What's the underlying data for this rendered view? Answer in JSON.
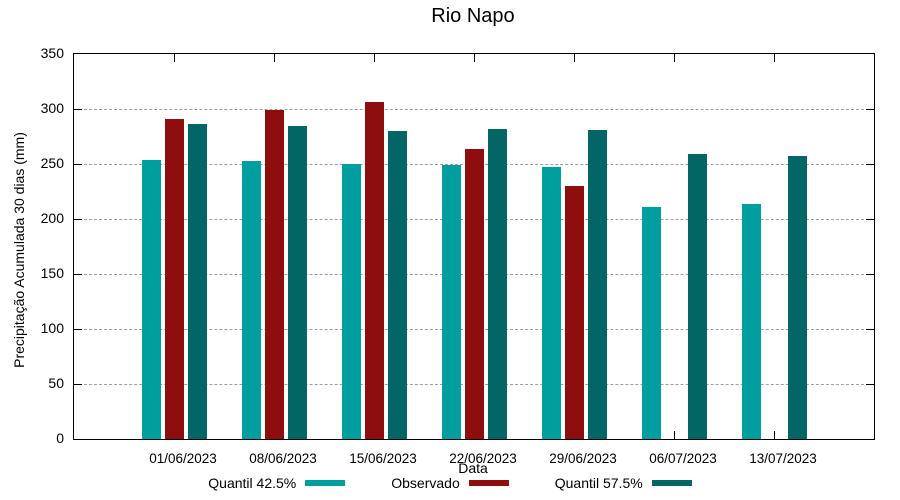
{
  "chart_data": {
    "type": "bar",
    "title": "Rio Napo",
    "xlabel": "Data",
    "ylabel": "Precipitação Acumulada 30 dias (mm)",
    "categories": [
      "01/06/2023",
      "08/06/2023",
      "15/06/2023",
      "22/06/2023",
      "29/06/2023",
      "06/07/2023",
      "13/07/2023"
    ],
    "series": [
      {
        "name": "Quantil 42.5%",
        "color": "#009E9E",
        "values": [
          254,
          253,
          250,
          249,
          247,
          211,
          214
        ]
      },
      {
        "name": "Observado",
        "color": "#8E0D0D",
        "values": [
          291,
          299,
          306,
          264,
          230,
          null,
          null
        ]
      },
      {
        "name": "Quantil 57.5%",
        "color": "#026666",
        "values": [
          286,
          285,
          280,
          282,
          281,
          259,
          257
        ]
      }
    ],
    "ylim": [
      0,
      350
    ],
    "ytick_step": 50,
    "yticks": [
      0,
      50,
      100,
      150,
      200,
      250,
      300,
      350
    ],
    "grid": true,
    "legend_position": "bottom"
  }
}
